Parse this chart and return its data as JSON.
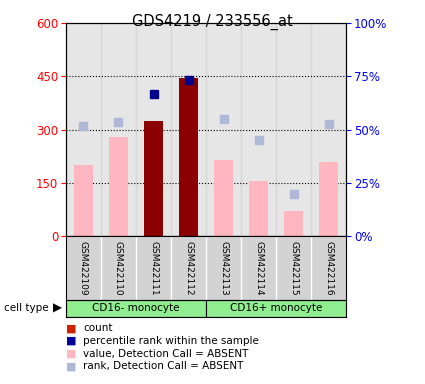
{
  "title": "GDS4219 / 233556_at",
  "samples": [
    "GSM422109",
    "GSM422110",
    "GSM422111",
    "GSM422112",
    "GSM422113",
    "GSM422114",
    "GSM422115",
    "GSM422116"
  ],
  "group1_label": "CD16- monocyte",
  "group1_color": "#90ee90",
  "group1_dark": "#32cd32",
  "group2_label": "CD16+ monocyte",
  "group2_color": "#90ee90",
  "group2_dark": "#32cd32",
  "group1_indices": [
    0,
    1,
    2,
    3
  ],
  "group2_indices": [
    4,
    5,
    6,
    7
  ],
  "value_absent": [
    200,
    280,
    null,
    null,
    215,
    155,
    70,
    210
  ],
  "rank_absent": [
    310,
    320,
    null,
    null,
    330,
    270,
    120,
    315
  ],
  "count_present": [
    null,
    null,
    325,
    445,
    null,
    null,
    null,
    null
  ],
  "percentile_present": [
    null,
    null,
    400,
    440,
    null,
    null,
    null,
    null
  ],
  "left_ylim": [
    0,
    600
  ],
  "right_ylim": [
    0,
    100
  ],
  "left_yticks": [
    0,
    150,
    300,
    450,
    600
  ],
  "right_yticks": [
    0,
    25,
    50,
    75,
    100
  ],
  "right_yticklabels": [
    "0%",
    "25%",
    "50%",
    "75%",
    "100%"
  ],
  "color_count": "#8b0000",
  "color_percentile": "#00008b",
  "color_value_absent": "#ffb6c1",
  "color_rank_absent": "#b0b8d8",
  "col_bg": "#d3d3d3",
  "legend_items": [
    {
      "label": "count",
      "color": "#cc2200"
    },
    {
      "label": "percentile rank within the sample",
      "color": "#000099"
    },
    {
      "label": "value, Detection Call = ABSENT",
      "color": "#ffb6c1"
    },
    {
      "label": "rank, Detection Call = ABSENT",
      "color": "#b0b8d8"
    }
  ]
}
